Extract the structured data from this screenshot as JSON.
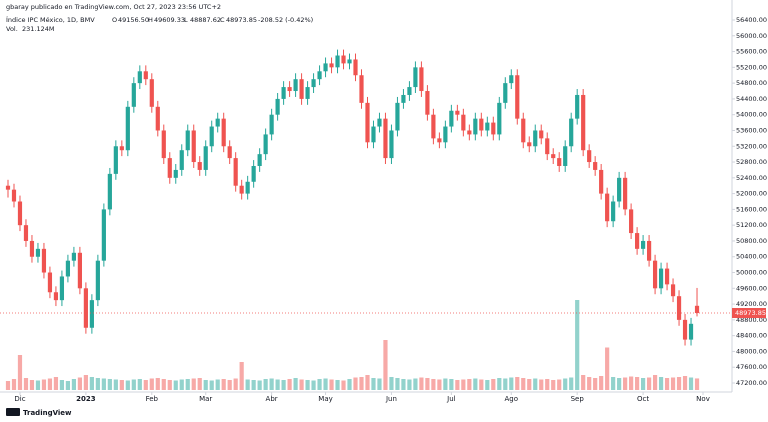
{
  "header": {
    "author": "gbaray publicado en TradingView.com, Oct 27, 2023 23:56 UTC+2",
    "symbol": "Índice IPC México, 1D, BMV",
    "ohlc": [
      {
        "key": "O",
        "value": "49156.50"
      },
      {
        "key": "H",
        "value": "49609.33"
      },
      {
        "key": "L",
        "value": "48887.62"
      },
      {
        "key": "C",
        "value": "48973.85"
      }
    ],
    "change": "-208.52 (-0.42%)",
    "volume_key": "Vol.",
    "volume_value": "231.124M"
  },
  "footer": {
    "brand": "TradingView"
  },
  "chart_data": {
    "type": "candlestick",
    "up_color": "#26a69a",
    "down_color": "#ef5350",
    "last_price": 48973.85,
    "last_price_label": "48973.85",
    "ylim": [
      47000,
      56600
    ],
    "yticks": [
      {
        "value": 47200,
        "label": "47200.00"
      },
      {
        "value": 47600,
        "label": "47600.00"
      },
      {
        "value": 48000,
        "label": "48000.00"
      },
      {
        "value": 48400,
        "label": "48400.00"
      },
      {
        "value": 48800,
        "label": "48800.00"
      },
      {
        "value": 49200,
        "label": "49200.00"
      },
      {
        "value": 49600,
        "label": "49600.00"
      },
      {
        "value": 50000,
        "label": "50000.00"
      },
      {
        "value": 50400,
        "label": "50400.00"
      },
      {
        "value": 50800,
        "label": "50800.00"
      },
      {
        "value": 51200,
        "label": "51200.00"
      },
      {
        "value": 51600,
        "label": "51600.00"
      },
      {
        "value": 52000,
        "label": "52000.00"
      },
      {
        "value": 52400,
        "label": "52400.00"
      },
      {
        "value": 52800,
        "label": "52800.00"
      },
      {
        "value": 53200,
        "label": "53200.00"
      },
      {
        "value": 53600,
        "label": "53600.00"
      },
      {
        "value": 54000,
        "label": "54000.00"
      },
      {
        "value": 54400,
        "label": "54400.00"
      },
      {
        "value": 54800,
        "label": "54800.00"
      },
      {
        "value": 55200,
        "label": "55200.00"
      },
      {
        "value": 55600,
        "label": "55600.00"
      },
      {
        "value": 56000,
        "label": "56000.00"
      },
      {
        "value": 56400,
        "label": "56400.00"
      }
    ],
    "xlim": [
      -0.5,
      117.5
    ],
    "xticks": [
      {
        "value": 2,
        "label": "Dic"
      },
      {
        "value": 13,
        "label": "2023"
      },
      {
        "value": 24,
        "label": "Feb"
      },
      {
        "value": 33,
        "label": "Mar"
      },
      {
        "value": 44,
        "label": "Abr"
      },
      {
        "value": 53,
        "label": "May"
      },
      {
        "value": 64,
        "label": "Jun"
      },
      {
        "value": 74,
        "label": "Jul"
      },
      {
        "value": 84,
        "label": "Ago"
      },
      {
        "value": 95,
        "label": "Sep"
      },
      {
        "value": 106,
        "label": "Oct"
      },
      {
        "value": 116,
        "label": "Nov"
      }
    ],
    "open": [
      52200,
      52100,
      51800,
      51200,
      50800,
      50400,
      50600,
      50000,
      49500,
      49300,
      49900,
      50300,
      50500,
      49600,
      48600,
      49300,
      50300,
      51600,
      52500,
      53200,
      53100,
      54200,
      54800,
      55100,
      54900,
      54200,
      53600,
      52900,
      52400,
      52600,
      53100,
      53600,
      52800,
      52600,
      53200,
      53700,
      53900,
      53200,
      52900,
      52200,
      52000,
      52300,
      52700,
      53000,
      53500,
      54000,
      54400,
      54700,
      54600,
      54900,
      54400,
      54700,
      54900,
      55100,
      55300,
      55200,
      55500,
      55300,
      55400,
      55000,
      54300,
      53300,
      53700,
      53900,
      52900,
      53600,
      54300,
      54500,
      54700,
      55200,
      54600,
      54000,
      53400,
      53300,
      53700,
      54100,
      54000,
      53600,
      53500,
      53900,
      53600,
      53800,
      53500,
      54300,
      54800,
      55000,
      53900,
      53300,
      53200,
      53600,
      53400,
      53000,
      52900,
      52700,
      53200,
      53900,
      54500,
      53100,
      52800,
      52600,
      52000,
      51300,
      51800,
      52400,
      51600,
      51000,
      50600,
      50800,
      50300,
      49600,
      50100,
      49700,
      49400,
      48800,
      48300,
      49156.5
    ],
    "high": [
      52350,
      52250,
      51950,
      51350,
      50950,
      50750,
      50750,
      50150,
      49650,
      50050,
      50450,
      50650,
      50650,
      49750,
      49450,
      50450,
      51750,
      52650,
      53350,
      53350,
      54350,
      54950,
      55250,
      55250,
      55050,
      54350,
      53750,
      53050,
      52750,
      53250,
      53750,
      53750,
      52950,
      53350,
      53850,
      54050,
      54050,
      53350,
      53050,
      52350,
      52450,
      52850,
      53150,
      53650,
      54150,
      54550,
      54850,
      54850,
      55050,
      55050,
      54850,
      55050,
      55250,
      55450,
      55450,
      55650,
      55650,
      55550,
      55550,
      55150,
      54450,
      53850,
      54050,
      54050,
      53750,
      54450,
      54650,
      54850,
      55350,
      55350,
      54750,
      54150,
      53550,
      53850,
      54250,
      54250,
      54150,
      53750,
      54050,
      54050,
      53950,
      53950,
      54450,
      54950,
      55150,
      55150,
      54050,
      53450,
      53750,
      53750,
      53550,
      53150,
      53050,
      53350,
      54050,
      54650,
      54650,
      53250,
      52950,
      52750,
      52150,
      51950,
      52550,
      52550,
      51750,
      51150,
      50950,
      50950,
      50450,
      50250,
      50250,
      49850,
      49550,
      48950,
      48850,
      49609.33
    ],
    "low": [
      51900,
      51650,
      51050,
      50650,
      50250,
      50250,
      49850,
      49350,
      49150,
      49150,
      49750,
      50150,
      49450,
      48450,
      48450,
      49150,
      50150,
      51450,
      52350,
      52950,
      52950,
      54050,
      54650,
      54750,
      54050,
      53450,
      52750,
      52250,
      52250,
      52450,
      52950,
      52650,
      52450,
      52450,
      53050,
      53550,
      53050,
      52750,
      52050,
      51850,
      51850,
      52150,
      52550,
      52850,
      53350,
      53850,
      54250,
      54450,
      54450,
      54250,
      54250,
      54550,
      54750,
      54950,
      55050,
      55050,
      55150,
      55150,
      54850,
      54150,
      53150,
      53150,
      53550,
      52750,
      52750,
      53450,
      54150,
      54350,
      54550,
      54450,
      53850,
      53250,
      53150,
      53150,
      53550,
      53850,
      53450,
      53350,
      53350,
      53450,
      53450,
      53350,
      53350,
      54150,
      54650,
      53750,
      53150,
      53050,
      53050,
      53250,
      52850,
      52750,
      52550,
      52550,
      53050,
      53750,
      52950,
      52650,
      52450,
      51850,
      51150,
      51150,
      51650,
      51450,
      50850,
      50450,
      50450,
      50150,
      49450,
      49450,
      49550,
      49250,
      48650,
      48150,
      48150,
      48887.62
    ],
    "close": [
      52100,
      51800,
      51200,
      50800,
      50400,
      50600,
      50000,
      49500,
      49300,
      49900,
      50300,
      50500,
      49600,
      48600,
      49300,
      50300,
      51600,
      52500,
      53200,
      53100,
      54200,
      54800,
      55100,
      54900,
      54200,
      53600,
      52900,
      52400,
      52600,
      53100,
      53600,
      52800,
      52600,
      53200,
      53700,
      53900,
      53200,
      52900,
      52200,
      52000,
      52300,
      52700,
      53000,
      53500,
      54000,
      54400,
      54700,
      54600,
      54900,
      54400,
      54700,
      54900,
      55100,
      55300,
      55200,
      55500,
      55300,
      55400,
      55000,
      54300,
      53300,
      53700,
      53900,
      52900,
      53600,
      54300,
      54500,
      54700,
      55200,
      54600,
      54000,
      53400,
      53300,
      53700,
      54100,
      54000,
      53600,
      53500,
      53900,
      53600,
      53800,
      53500,
      54300,
      54800,
      55000,
      53900,
      53300,
      53200,
      53600,
      53400,
      53000,
      52900,
      52700,
      53200,
      53900,
      54500,
      53100,
      52800,
      52600,
      52000,
      51300,
      51800,
      52400,
      51600,
      51000,
      50600,
      50800,
      50300,
      49600,
      50100,
      49700,
      49400,
      48800,
      48300,
      48700,
      48973.85
    ],
    "volume": [
      180,
      220,
      700,
      240,
      200,
      190,
      210,
      230,
      260,
      200,
      180,
      220,
      250,
      300,
      260,
      240,
      230,
      220,
      210,
      200,
      190,
      210,
      220,
      200,
      230,
      240,
      220,
      200,
      190,
      210,
      220,
      230,
      240,
      200,
      190,
      210,
      220,
      200,
      230,
      560,
      210,
      200,
      190,
      220,
      230,
      210,
      200,
      220,
      240,
      210,
      200,
      190,
      220,
      230,
      210,
      200,
      190,
      220,
      250,
      260,
      300,
      240,
      230,
      1000,
      260,
      240,
      220,
      210,
      230,
      250,
      240,
      220,
      210,
      230,
      220,
      200,
      210,
      220,
      230,
      210,
      200,
      220,
      240,
      230,
      250,
      260,
      240,
      220,
      230,
      210,
      220,
      200,
      210,
      230,
      250,
      1800,
      300,
      260,
      240,
      280,
      850,
      260,
      240,
      250,
      270,
      260,
      240,
      250,
      300,
      260,
      240,
      250,
      260,
      280,
      250,
      231.124
    ]
  }
}
